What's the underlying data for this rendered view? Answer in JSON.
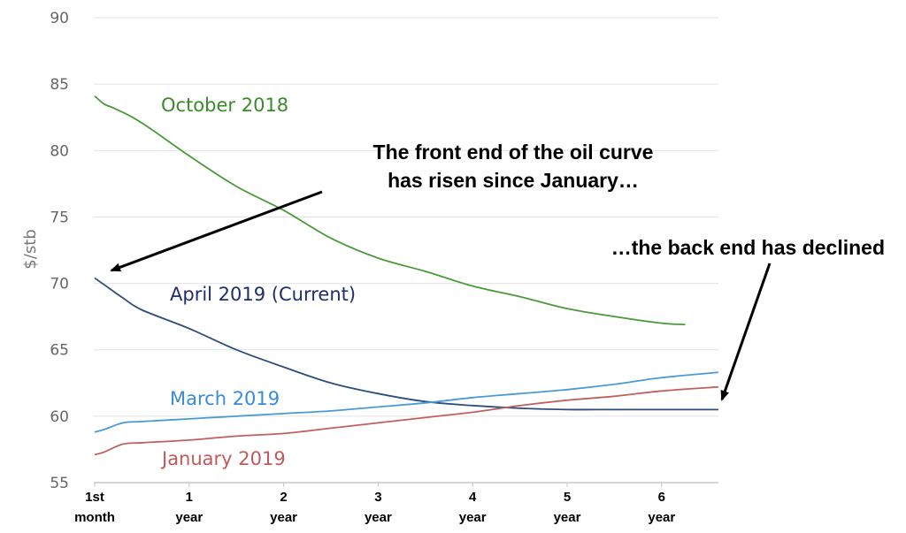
{
  "chart_data": {
    "type": "line",
    "ylabel": "$/stb",
    "xlabel": "",
    "ylim": [
      55,
      90
    ],
    "yticks": [
      55,
      60,
      65,
      70,
      75,
      80,
      85,
      90
    ],
    "grid": "horizontal",
    "x_ticks": [
      {
        "x": 0,
        "line1": "1st",
        "line2": "month"
      },
      {
        "x": 1,
        "line1": "1",
        "line2": "year"
      },
      {
        "x": 2,
        "line1": "2",
        "line2": "year"
      },
      {
        "x": 3,
        "line1": "3",
        "line2": "year"
      },
      {
        "x": 4,
        "line1": "4",
        "line2": "year"
      },
      {
        "x": 5,
        "line1": "5",
        "line2": "year"
      },
      {
        "x": 6,
        "line1": "6",
        "line2": "year"
      }
    ],
    "series": [
      {
        "name": "October 2018",
        "color": "#4a9a3a",
        "x": [
          0,
          0.1,
          0.2,
          0.4,
          0.6,
          1.0,
          1.5,
          2.0,
          2.5,
          3.0,
          3.5,
          4.0,
          4.5,
          5.0,
          5.5,
          6.0,
          6.25
        ],
        "y": [
          84.1,
          83.5,
          83.2,
          82.5,
          81.6,
          79.6,
          77.3,
          75.5,
          73.4,
          71.9,
          70.9,
          69.8,
          69.0,
          68.1,
          67.5,
          67.0,
          66.9
        ]
      },
      {
        "name": "April 2019 (Current)",
        "color": "#2e4e7e",
        "x": [
          0,
          0.1,
          0.3,
          0.5,
          1.0,
          1.5,
          2.0,
          2.5,
          3.0,
          3.5,
          4.0,
          4.5,
          5.0,
          5.5,
          6.0,
          6.6
        ],
        "y": [
          70.4,
          69.9,
          68.9,
          68.0,
          66.6,
          65.0,
          63.7,
          62.5,
          61.7,
          61.1,
          60.8,
          60.6,
          60.5,
          60.5,
          60.5,
          60.5
        ]
      },
      {
        "name": "March 2019",
        "color": "#4a9ad6",
        "x": [
          0,
          0.1,
          0.3,
          0.5,
          1.0,
          1.5,
          2.0,
          2.5,
          3.0,
          3.5,
          4.0,
          4.5,
          5.0,
          5.5,
          6.0,
          6.6
        ],
        "y": [
          58.8,
          59.0,
          59.5,
          59.6,
          59.8,
          60.0,
          60.2,
          60.4,
          60.7,
          61.0,
          61.4,
          61.7,
          62.0,
          62.4,
          62.9,
          63.3
        ]
      },
      {
        "name": "January 2019",
        "color": "#c06060",
        "x": [
          0,
          0.1,
          0.3,
          0.5,
          1.0,
          1.5,
          2.0,
          2.5,
          3.0,
          3.5,
          4.0,
          4.5,
          5.0,
          5.5,
          6.0,
          6.6
        ],
        "y": [
          57.1,
          57.3,
          57.9,
          58.0,
          58.2,
          58.5,
          58.7,
          59.1,
          59.5,
          59.9,
          60.3,
          60.8,
          61.2,
          61.5,
          61.9,
          62.2
        ]
      }
    ],
    "annotations": [
      {
        "id": "front",
        "lines": [
          "The front end of the oil curve",
          "has risen since January…"
        ]
      },
      {
        "id": "back",
        "lines": [
          "…the back end has declined"
        ]
      }
    ]
  }
}
